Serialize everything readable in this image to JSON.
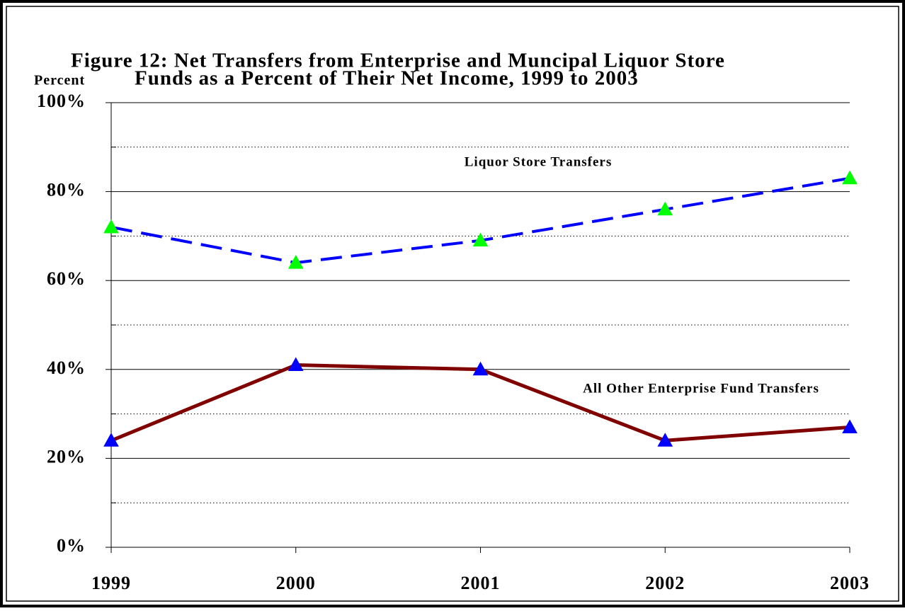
{
  "chart_data": {
    "type": "line",
    "title": [
      "Figure 12:  Net Transfers from Enterprise and Muncipal Liquor Store",
      "Funds as a Percent of Their Net Income, 1999 to 2003"
    ],
    "y_label": "Percent",
    "categories": [
      "1999",
      "2000",
      "2001",
      "2002",
      "2003"
    ],
    "series": [
      {
        "name": "Liquor Store Transfers",
        "color": "#0000ff",
        "marker_color": "#00ff00",
        "dashed": true,
        "values": [
          72,
          64,
          69,
          76,
          83
        ]
      },
      {
        "name": "All Other Enterprise Fund Transfers",
        "color": "#800000",
        "marker_color": "#0000ff",
        "dashed": false,
        "values": [
          24,
          41,
          40,
          24,
          27
        ]
      }
    ],
    "ylim": [
      0,
      100
    ],
    "yticks": [
      {
        "value": 0,
        "label": "0%"
      },
      {
        "value": 20,
        "label": "20%"
      },
      {
        "value": 40,
        "label": "40%"
      },
      {
        "value": 60,
        "label": "60%"
      },
      {
        "value": 80,
        "label": "80%"
      },
      {
        "value": 100,
        "label": "100%"
      }
    ],
    "minor_yticks": [
      10,
      30,
      50,
      70,
      90
    ],
    "grid": true
  }
}
